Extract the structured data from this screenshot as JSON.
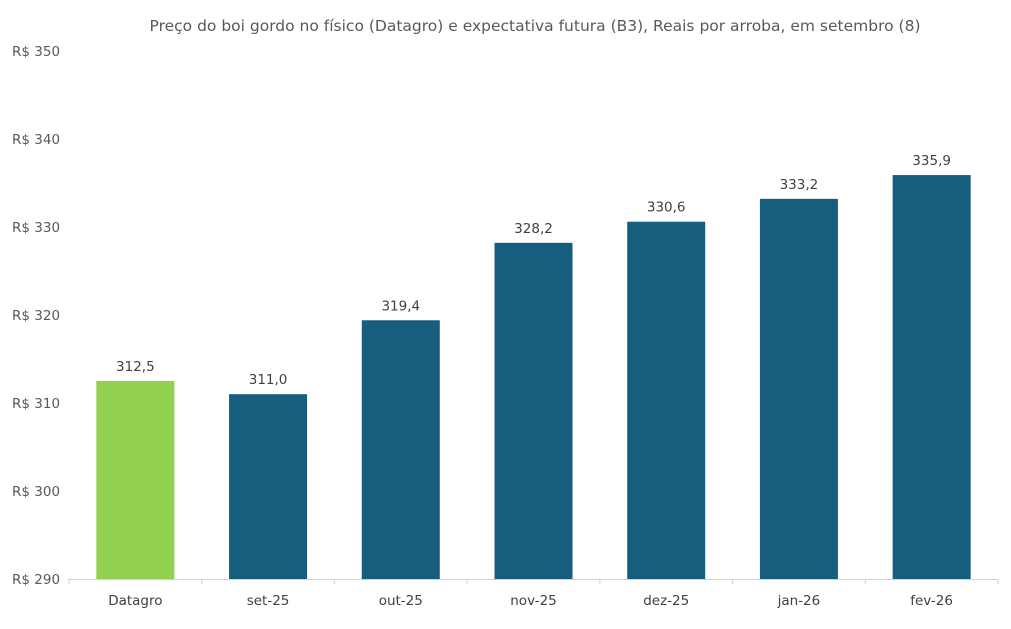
{
  "chart_data": {
    "type": "bar",
    "title": "Preço do boi gordo no físico (Datagro)  e expectativa futura (B3), Reais por arroba, em setembro (8)",
    "xlabel": "",
    "ylabel": "",
    "categories": [
      "Datagro",
      "set-25",
      "out-25",
      "nov-25",
      "dez-25",
      "jan-26",
      "fev-26"
    ],
    "values": [
      312.5,
      311.0,
      319.4,
      328.2,
      330.6,
      333.2,
      335.9
    ],
    "value_labels": [
      "312,5",
      "311,0",
      "319,4",
      "328,2",
      "330,6",
      "333,2",
      "335,9"
    ],
    "bar_colors": [
      "#92d050",
      "#175e7e",
      "#175e7e",
      "#175e7e",
      "#175e7e",
      "#175e7e",
      "#175e7e"
    ],
    "ylim": [
      290,
      350
    ],
    "y_ticks": [
      290,
      300,
      310,
      320,
      330,
      340,
      350
    ],
    "y_tick_labels": [
      "R$ 290",
      "R$ 300",
      "R$ 310",
      "R$ 320",
      "R$ 330",
      "R$ 340",
      "R$ 350"
    ],
    "grid": false,
    "legend": "none"
  }
}
